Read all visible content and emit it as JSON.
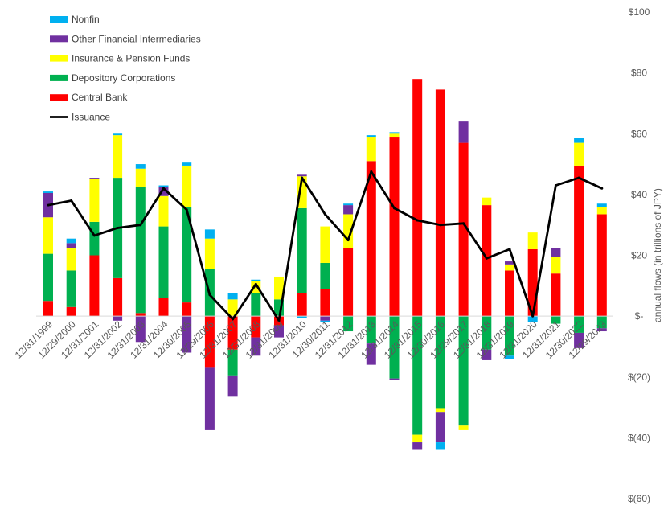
{
  "chart_data": {
    "type": "bar",
    "stacked": true,
    "categories": [
      "12/31/1999",
      "12/29/2000",
      "12/31/2001",
      "12/31/2002",
      "12/31/2003",
      "12/31/2004",
      "12/30/2005",
      "12/29/2006",
      "12/31/2007",
      "12/31/2008",
      "12/31/2009",
      "12/31/2010",
      "12/30/2011",
      "12/31/2012",
      "12/31/2013",
      "12/31/2014",
      "12/31/2015",
      "12/30/2016",
      "12/29/2017",
      "12/31/2018",
      "12/31/2019",
      "12/31/2020",
      "12/31/2021",
      "12/30/2022",
      "12/29/2023"
    ],
    "series": [
      {
        "name": "Central Bank",
        "color": "#ff0000",
        "values": [
          5,
          3,
          20,
          12.5,
          1,
          6,
          4.5,
          -17,
          -11,
          -7,
          -3,
          7.5,
          9,
          22.5,
          51,
          59,
          78,
          74.5,
          57,
          36.5,
          15,
          22,
          14,
          49.5,
          33.5
        ]
      },
      {
        "name": "Depository Corporations",
        "color": "#00b050",
        "values": [
          15.5,
          12,
          11,
          33,
          41.5,
          23.5,
          31.5,
          15.5,
          -8.5,
          7.5,
          5.5,
          28,
          8.5,
          -5,
          -9,
          -20.5,
          -39,
          -30.5,
          -36,
          -11,
          -13,
          0,
          -2.5,
          -5.5,
          -4
        ]
      },
      {
        "name": "Insurance & Pension Funds",
        "color": "#ffff00",
        "values": [
          12,
          7.5,
          14,
          14,
          6,
          10,
          13.5,
          10,
          5.5,
          4,
          7.5,
          10.5,
          12,
          11,
          8,
          1,
          -2.5,
          -1,
          -1.5,
          2.5,
          2,
          5.5,
          5.5,
          7.5,
          2.5
        ]
      },
      {
        "name": "Other Financial Intermediaries",
        "color": "#7030a0",
        "values": [
          8,
          1.5,
          0.5,
          -1.5,
          -8.5,
          3,
          -12,
          -20.5,
          -7,
          -6,
          -4,
          0.5,
          -1.5,
          3,
          -7,
          -0.5,
          -2.5,
          -10,
          7,
          -3.5,
          1,
          0,
          3,
          -5,
          -1
        ]
      },
      {
        "name": "Nonfin",
        "color": "#00b0f0",
        "values": [
          0.5,
          1.5,
          0,
          0.5,
          1.5,
          0.5,
          1,
          3,
          2,
          0.5,
          0,
          -0.5,
          -0.5,
          0.5,
          0.5,
          0.5,
          0,
          -2.5,
          0,
          0,
          -1,
          -2,
          0,
          1.5,
          1
        ]
      }
    ],
    "line_series": {
      "name": "Issuance",
      "color": "#000000",
      "values": [
        36.5,
        38,
        26.5,
        29,
        30,
        42,
        35,
        7,
        -1,
        10.5,
        -1.5,
        45.5,
        33.5,
        25,
        47.5,
        35.5,
        31.5,
        30,
        30.5,
        19,
        22,
        0,
        43,
        45.5,
        42
      ]
    },
    "ylim": [
      -60,
      100
    ],
    "ytick_values": [
      -60,
      -40,
      -20,
      0,
      20,
      40,
      60,
      80,
      100
    ],
    "ytick_labels": [
      "$(60)",
      "$(40)",
      "$(20)",
      "$-",
      "$20",
      "$40",
      "$60",
      "$80",
      "$100"
    ],
    "ylabel": "annual flows (in trillions of JPY)",
    "xlabel": "",
    "title": "",
    "legend_position": "top-left",
    "legend_order": [
      "Nonfin",
      "Other Financial Intermediaries",
      "Insurance & Pension Funds",
      "Depository Corporations",
      "Central Bank",
      "Issuance"
    ],
    "grid": false
  }
}
